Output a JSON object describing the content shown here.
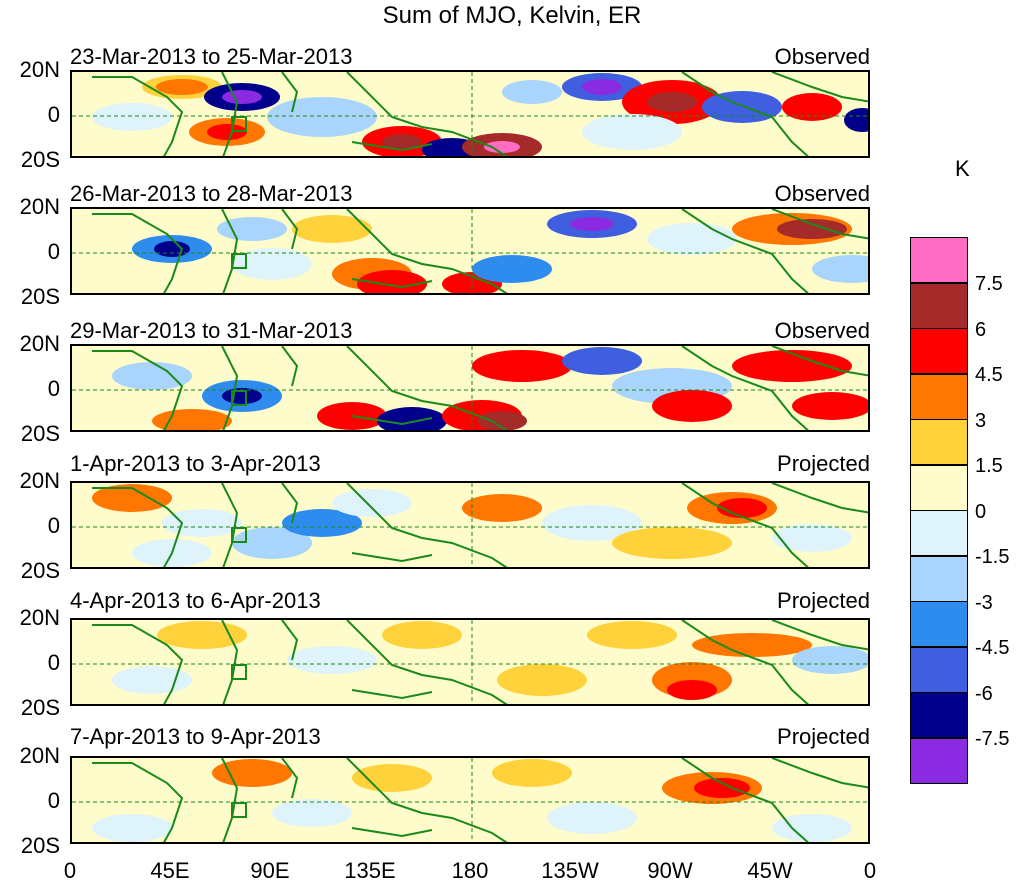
{
  "title": "Sum of MJO, Kelvin, ER",
  "panels": [
    {
      "date_range": "23-Mar-2013 to 25-Mar-2013",
      "type": "Observed"
    },
    {
      "date_range": "26-Mar-2013 to 28-Mar-2013",
      "type": "Observed"
    },
    {
      "date_range": "29-Mar-2013 to 31-Mar-2013",
      "type": "Observed"
    },
    {
      "date_range": "1-Apr-2013 to 3-Apr-2013",
      "type": "Projected"
    },
    {
      "date_range": "4-Apr-2013 to 6-Apr-2013",
      "type": "Projected"
    },
    {
      "date_range": "7-Apr-2013 to 9-Apr-2013",
      "type": "Projected"
    }
  ],
  "lat_labels": [
    "20N",
    "0",
    "20S"
  ],
  "lon_labels": [
    "0",
    "45E",
    "90E",
    "135E",
    "180",
    "135W",
    "90W",
    "45W",
    "0"
  ],
  "colorbar": {
    "unit": "K",
    "labels": [
      "7.5",
      "6",
      "4.5",
      "3",
      "1.5",
      "0",
      "-1.5",
      "-3",
      "-4.5",
      "-6",
      "-7.5"
    ],
    "colors": [
      "#ff6cc3",
      "#a52a2a",
      "#ff0000",
      "#ff7700",
      "#ffd23c",
      "#fffccc",
      "#dff3fb",
      "#a9d4fb",
      "#2e8cef",
      "#3f5fe0",
      "#00008b",
      "#8a2be2"
    ]
  },
  "colors": {
    "coastline": "#1a8a1a",
    "axis": "#000000"
  }
}
